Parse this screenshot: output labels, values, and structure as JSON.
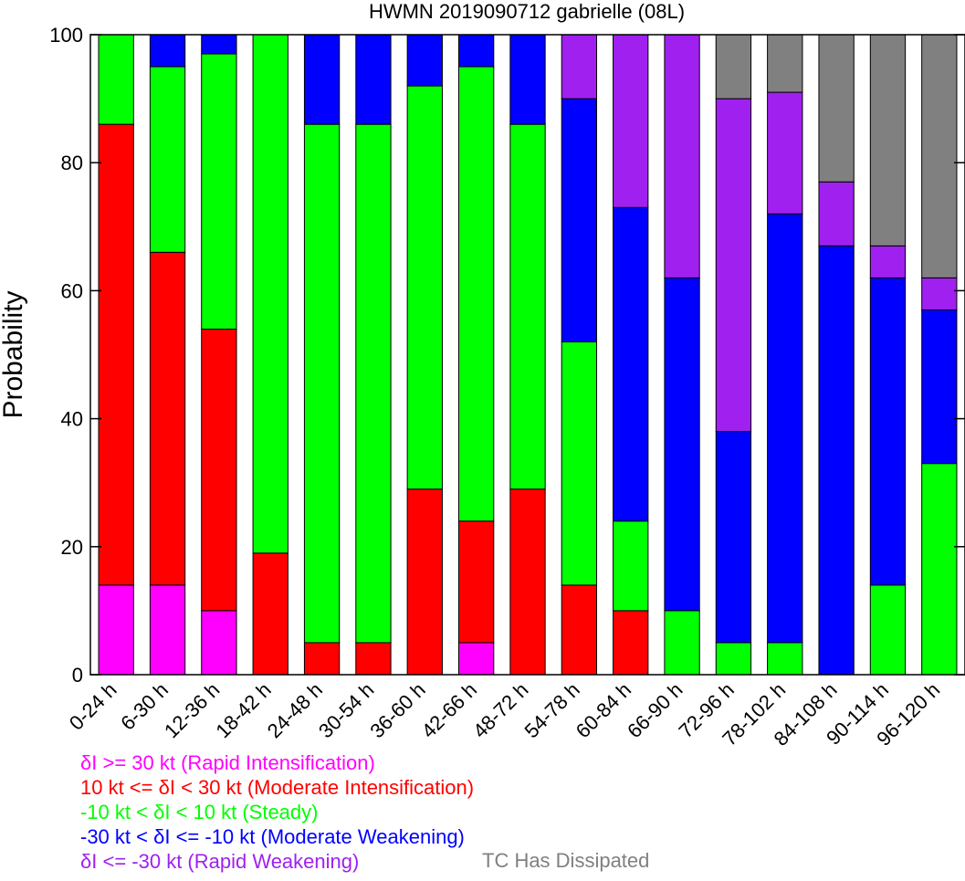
{
  "chart_data": {
    "type": "bar",
    "stacked": true,
    "title": "HWMN 2019090712 gabrielle (08L)",
    "xlabel": "",
    "ylabel": "Probability",
    "ylim": [
      0,
      100
    ],
    "yticks": [
      "0",
      "20",
      "40",
      "60",
      "80",
      "100"
    ],
    "grid": false,
    "categories": [
      "0-24 h",
      "6-30 h",
      "12-36 h",
      "18-42 h",
      "24-48 h",
      "30-54 h",
      "36-60 h",
      "42-66 h",
      "48-72 h",
      "54-78 h",
      "60-84 h",
      "66-90 h",
      "72-96 h",
      "78-102 h",
      "84-108 h",
      "90-114 h",
      "96-120 h"
    ],
    "series": [
      {
        "name": "δI >= 30 kt (Rapid Intensification)",
        "color": "#ff00ff",
        "values": [
          14,
          14,
          10,
          0,
          0,
          0,
          0,
          5,
          0,
          0,
          0,
          0,
          0,
          0,
          0,
          0,
          0
        ]
      },
      {
        "name": "10 kt <= δI < 30 kt (Moderate Intensification)",
        "color": "#ff0000",
        "values": [
          72,
          52,
          44,
          19,
          5,
          5,
          29,
          19,
          29,
          14,
          10,
          0,
          0,
          0,
          0,
          0,
          0
        ]
      },
      {
        "name": "-10 kt < δI < 10 kt (Steady)",
        "color": "#00ff00",
        "values": [
          14,
          29,
          43,
          81,
          81,
          81,
          63,
          71,
          57,
          38,
          14,
          10,
          5,
          5,
          0,
          14,
          33
        ]
      },
      {
        "name": "-30 kt < δI <= -10 kt (Moderate Weakening)",
        "color": "#0000ff",
        "values": [
          0,
          5,
          3,
          0,
          14,
          14,
          8,
          5,
          14,
          38,
          49,
          52,
          33,
          67,
          67,
          48,
          24
        ]
      },
      {
        "name": "δI <= -30 kt (Rapid Weakening)",
        "color": "#a020f0",
        "values": [
          0,
          0,
          0,
          0,
          0,
          0,
          0,
          0,
          0,
          10,
          27,
          38,
          52,
          19,
          10,
          5,
          5
        ]
      },
      {
        "name": "TC Has Dissipated",
        "color": "#808080",
        "values": [
          0,
          0,
          0,
          0,
          0,
          0,
          0,
          0,
          0,
          0,
          0,
          0,
          10,
          9,
          23,
          33,
          38
        ]
      }
    ]
  }
}
